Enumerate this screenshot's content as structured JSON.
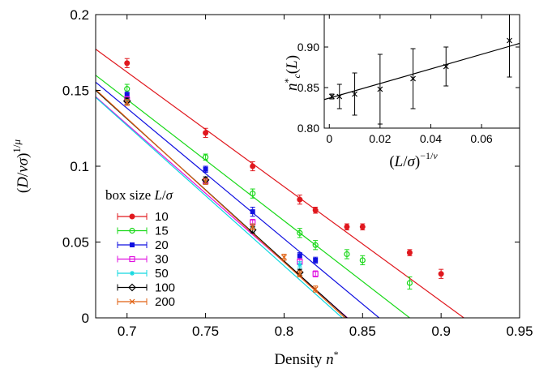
{
  "chart_data": [
    {
      "type": "scatter",
      "xlabel": "Density n*",
      "ylabel": "(D/vσ)^{1/μ}",
      "xlim": [
        0.68,
        0.95
      ],
      "ylim": [
        0,
        0.2
      ],
      "xticks": [
        "0.7",
        "0.75",
        "0.8",
        "0.85",
        "0.9",
        "0.95"
      ],
      "yticks": [
        "0",
        "0.05",
        "0.1",
        "0.15",
        "0.2"
      ],
      "legend_title": "box size L/σ",
      "legend_position": "lower-left",
      "series": [
        {
          "name": "10",
          "color": "#e0181e",
          "marker": "circle-filled",
          "points": [
            [
              0.7,
              0.168,
              0.003
            ],
            [
              0.75,
              0.122,
              0.003
            ],
            [
              0.78,
              0.1,
              0.003
            ],
            [
              0.81,
              0.078,
              0.003
            ],
            [
              0.82,
              0.071,
              0.002
            ],
            [
              0.84,
              0.06,
              0.002
            ],
            [
              0.85,
              0.06,
              0.002
            ],
            [
              0.88,
              0.043,
              0.002
            ],
            [
              0.9,
              0.029,
              0.003
            ]
          ],
          "fit": {
            "slope": -0.7556,
            "intercept": 0.691
          }
        },
        {
          "name": "15",
          "color": "#18d818",
          "marker": "circle-open",
          "points": [
            [
              0.7,
              0.151,
              0.003
            ],
            [
              0.75,
              0.106,
              0.002
            ],
            [
              0.78,
              0.082,
              0.003
            ],
            [
              0.81,
              0.056,
              0.003
            ],
            [
              0.82,
              0.048,
              0.003
            ],
            [
              0.84,
              0.042,
              0.003
            ],
            [
              0.85,
              0.038,
              0.003
            ],
            [
              0.88,
              0.023,
              0.004
            ]
          ],
          "fit": {
            "slope": -0.8,
            "intercept": 0.704
          }
        },
        {
          "name": "20",
          "color": "#1010e0",
          "marker": "square-filled",
          "points": [
            [
              0.7,
              0.147,
              0.002
            ],
            [
              0.75,
              0.098,
              0.002
            ],
            [
              0.78,
              0.07,
              0.003
            ],
            [
              0.81,
              0.041,
              0.002
            ],
            [
              0.82,
              0.038,
              0.002
            ]
          ],
          "fit": {
            "slope": -0.8611,
            "intercept": 0.741
          }
        },
        {
          "name": "30",
          "color": "#e010e0",
          "marker": "square-open",
          "points": [
            [
              0.7,
              0.144,
              0.002
            ],
            [
              0.75,
              0.09,
              0.002
            ],
            [
              0.78,
              0.063,
              0.002
            ],
            [
              0.81,
              0.037,
              0.002
            ],
            [
              0.82,
              0.029,
              0.002
            ]
          ],
          "fit": {
            "slope": -0.9091,
            "intercept": 0.764
          }
        },
        {
          "name": "50",
          "color": "#10d8e0",
          "marker": "star",
          "points": [
            [
              0.7,
              0.143,
              0.002
            ],
            [
              0.75,
              0.09,
              0.002
            ],
            [
              0.78,
              0.06,
              0.002
            ],
            [
              0.81,
              0.035,
              0.002
            ]
          ],
          "fit": {
            "slope": -0.9259,
            "intercept": 0.775
          }
        },
        {
          "name": "100",
          "color": "#000000",
          "marker": "diamond-open",
          "points": [
            [
              0.7,
              0.143,
              0.002
            ],
            [
              0.75,
              0.091,
              0.002
            ],
            [
              0.78,
              0.058,
              0.002
            ],
            [
              0.81,
              0.03,
              0.002
            ]
          ],
          "fit": {
            "slope": -0.9375,
            "intercept": 0.7875
          }
        },
        {
          "name": "200",
          "color": "#e06010",
          "marker": "x-cross",
          "points": [
            [
              0.7,
              0.142,
              0.002
            ],
            [
              0.75,
              0.09,
              0.002
            ],
            [
              0.78,
              0.06,
              0.002
            ],
            [
              0.8,
              0.04,
              0.002
            ],
            [
              0.81,
              0.029,
              0.002
            ],
            [
              0.82,
              0.019,
              0.002
            ]
          ],
          "fit": {
            "slope": -0.9483,
            "intercept": 0.7954
          }
        }
      ]
    },
    {
      "type": "scatter",
      "role": "inset",
      "xlabel": "(L/σ)^{−1/ν}",
      "ylabel": "n*_c(L)",
      "xlim": [
        -0.002,
        0.075
      ],
      "ylim": [
        0.8,
        0.94
      ],
      "xticks": [
        "0",
        "0.02",
        "0.04",
        "0.06"
      ],
      "yticks": [
        "0.80",
        "0.85",
        "0.90"
      ],
      "color": "#000000",
      "marker": "x-cross",
      "points": [
        [
          0.001,
          0.839,
          0.003
        ],
        [
          0.004,
          0.839,
          0.015
        ],
        [
          0.01,
          0.842,
          0.026
        ],
        [
          0.02,
          0.848,
          0.043
        ],
        [
          0.033,
          0.861,
          0.037
        ],
        [
          0.046,
          0.876,
          0.024
        ],
        [
          0.071,
          0.908,
          0.045
        ]
      ],
      "fit": {
        "slope": 0.9,
        "intercept": 0.837
      }
    }
  ]
}
